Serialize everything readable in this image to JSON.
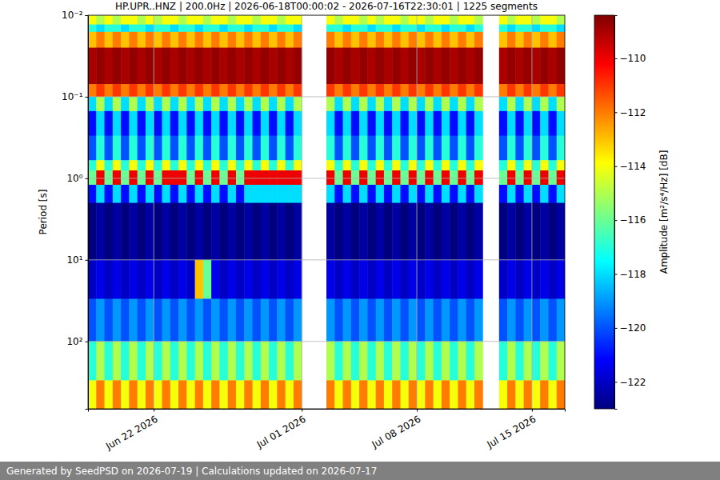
{
  "chart_data": {
    "type": "heatmap",
    "title": "HP.UPR..HNZ | 200.0Hz | 2026-06-18T00:00:02 - 2026-07-16T22:30:01 | 1225 segments",
    "y_label": "Period [s]",
    "footer": "Generated by SeedPSD on 2026-07-19 | Calculations updated on 2026-07-17",
    "log": "y",
    "grid": true,
    "xlim": [
      "2026-06-18",
      "2026-07-17"
    ],
    "xticks": [
      {
        "value": "2026-06-22",
        "label": "Jun 22 2026"
      },
      {
        "value": "2026-07-01",
        "label": "Jul 01 2026"
      },
      {
        "value": "2026-07-08",
        "label": "Jul 08 2026"
      },
      {
        "value": "2026-07-15",
        "label": "Jul 15 2026"
      }
    ],
    "ylim": [
      0.01,
      670
    ],
    "yticks": [
      {
        "value": 0.01,
        "label": "10⁻²"
      },
      {
        "value": 0.1,
        "label": "10⁻¹"
      },
      {
        "value": 1,
        "label": "10⁰"
      },
      {
        "value": 10,
        "label": "10¹"
      },
      {
        "value": 100,
        "label": "10²"
      }
    ],
    "colorbar": {
      "label": "Amplitude [m²/s⁴/Hz] [dB]",
      "lim": [
        -123,
        -108.4
      ],
      "ticks": [
        {
          "value": -110,
          "label": "−110"
        },
        {
          "value": -112,
          "label": "−112"
        },
        {
          "value": -114,
          "label": "−114"
        },
        {
          "value": -116,
          "label": "−116"
        },
        {
          "value": -118,
          "label": "−118"
        },
        {
          "value": -120,
          "label": "−120"
        },
        {
          "value": -122,
          "label": "−122"
        }
      ]
    },
    "x": [
      "2026-06-18T00:00",
      "2026-06-18T12:00",
      "2026-06-19T00:00",
      "2026-06-19T12:00",
      "2026-06-20T00:00",
      "2026-06-20T12:00",
      "2026-06-21T00:00",
      "2026-06-21T12:00",
      "2026-06-22T00:00",
      "2026-06-22T12:00",
      "2026-06-23T00:00",
      "2026-06-23T12:00",
      "2026-06-24T00:00",
      "2026-06-24T12:00",
      "2026-06-25T00:00",
      "2026-06-25T12:00",
      "2026-06-26T00:00",
      "2026-06-26T12:00",
      "2026-06-27T00:00",
      "2026-06-27T12:00",
      "2026-06-28T00:00",
      "2026-06-28T12:00",
      "2026-06-29T00:00",
      "2026-06-29T12:00",
      "2026-06-30T00:00",
      "2026-06-30T12:00",
      "2026-07-01T00:00",
      "2026-07-01T12:00",
      "2026-07-02T00:00",
      "2026-07-02T12:00",
      "2026-07-03T00:00",
      "2026-07-03T12:00",
      "2026-07-04T00:00",
      "2026-07-04T12:00",
      "2026-07-05T00:00",
      "2026-07-05T12:00",
      "2026-07-06T00:00",
      "2026-07-06T12:00",
      "2026-07-07T00:00",
      "2026-07-07T12:00",
      "2026-07-08T00:00",
      "2026-07-08T12:00",
      "2026-07-09T00:00",
      "2026-07-09T12:00",
      "2026-07-10T00:00",
      "2026-07-10T12:00",
      "2026-07-11T00:00",
      "2026-07-11T12:00",
      "2026-07-12T00:00",
      "2026-07-12T12:00",
      "2026-07-13T00:00",
      "2026-07-13T12:00",
      "2026-07-14T00:00",
      "2026-07-14T12:00",
      "2026-07-15T00:00",
      "2026-07-15T12:00",
      "2026-07-16T00:00",
      "2026-07-16T12:00",
      "2026-07-17T00:00"
    ],
    "y": [
      0.01,
      0.013,
      0.016,
      0.025,
      0.07,
      0.1,
      0.15,
      0.3,
      0.6,
      0.8,
      1.2,
      2,
      10,
      30,
      100,
      300,
      670
    ],
    "values": [
      [
        -114,
        -115,
        -114,
        -115,
        -114,
        -114,
        -115,
        -114,
        -115,
        -114,
        -114,
        -115,
        -114,
        -114,
        -115,
        -114,
        -114,
        -115,
        -114,
        -114,
        -115,
        -114,
        -114,
        -115,
        -114,
        -114,
        null,
        null,
        null,
        -114,
        -115,
        -114,
        -114,
        -115,
        -114,
        -115,
        -114,
        -114,
        -115,
        -114,
        -114,
        -115,
        -114,
        -114,
        -115,
        -114,
        -114,
        -115,
        null,
        null,
        -114,
        -115,
        -114,
        -114,
        -115,
        -114,
        -114,
        -115
      ],
      [
        -117,
        -118,
        -117,
        -117,
        -118,
        -117,
        -117,
        -118,
        -117,
        -117,
        -118,
        -117,
        -117,
        -118,
        -117,
        -117,
        -118,
        -117,
        -117,
        -118,
        -117,
        -117,
        -118,
        -117,
        -117,
        -118,
        null,
        null,
        null,
        -117,
        -117,
        -118,
        -117,
        -117,
        -118,
        -117,
        -117,
        -118,
        -117,
        -117,
        -118,
        -117,
        -117,
        -118,
        -117,
        -117,
        -118,
        -117,
        null,
        null,
        -117,
        -118,
        -117,
        -117,
        -118,
        -117,
        -117,
        -118
      ],
      [
        -113,
        -112,
        -113,
        -112,
        -113,
        -112,
        -113,
        -112,
        -113,
        -112,
        -113,
        -112,
        -113,
        -112,
        -113,
        -112,
        -113,
        -112,
        -113,
        -112,
        -113,
        -112,
        -113,
        -112,
        -113,
        -112,
        null,
        null,
        null,
        -112,
        -113,
        -112,
        -113,
        -112,
        -113,
        -112,
        -113,
        -112,
        -113,
        -112,
        -113,
        -112,
        -113,
        -112,
        -113,
        -112,
        -113,
        -112,
        null,
        null,
        -113,
        -112,
        -113,
        -112,
        -113,
        -112,
        -113,
        -112
      ],
      [
        -109,
        -108.7,
        -109,
        -108.7,
        -109,
        -108.7,
        -109,
        -108.7,
        -109,
        -108.7,
        -109,
        -108.7,
        -109,
        -108.7,
        -109,
        -108.7,
        -109,
        -108.7,
        -109,
        -108.7,
        -109,
        -108.7,
        -109,
        -108.7,
        -109,
        -108.7,
        null,
        null,
        null,
        -108.7,
        -109,
        -108.7,
        -109,
        -108.7,
        -109,
        -108.7,
        -109,
        -108.7,
        -109,
        -108.7,
        -109,
        -108.7,
        -109,
        -108.7,
        -109,
        -108.7,
        -109,
        -108.7,
        null,
        null,
        -109,
        -108.7,
        -109,
        -108.7,
        -109,
        -108.7,
        -109,
        -108.7
      ],
      [
        -112,
        -111,
        -112,
        -111,
        -112,
        -111,
        -112,
        -111,
        -112,
        -111,
        -112,
        -111,
        -112,
        -111,
        -112,
        -111,
        -112,
        -111,
        -112,
        -111,
        -112,
        -111,
        -112,
        -111,
        -112,
        -111,
        null,
        null,
        null,
        -111,
        -112,
        -111,
        -112,
        -111,
        -112,
        -111,
        -112,
        -111,
        -112,
        -111,
        -112,
        -111,
        -112,
        -111,
        -112,
        -111,
        -112,
        -111,
        null,
        null,
        -112,
        -111,
        -112,
        -111,
        -112,
        -111,
        -112,
        -111
      ],
      [
        -118,
        -115,
        -118,
        -115,
        -118,
        -115,
        -118,
        -115,
        -118,
        -115,
        -118,
        -115,
        -118,
        -115,
        -118,
        -115,
        -118,
        -115,
        -118,
        -115,
        -118,
        -115,
        -118,
        -115,
        -118,
        -115,
        null,
        null,
        null,
        -115,
        -118,
        -115,
        -118,
        -115,
        -118,
        -115,
        -118,
        -115,
        -118,
        -115,
        -118,
        -115,
        -118,
        -115,
        -118,
        -115,
        -118,
        -115,
        null,
        null,
        -118,
        -115,
        -118,
        -115,
        -118,
        -115,
        -118,
        -115
      ],
      [
        -121,
        -118,
        -121,
        -118,
        -121,
        -118,
        -121,
        -118,
        -121,
        -118,
        -121,
        -118,
        -121,
        -118,
        -121,
        -118,
        -121,
        -118,
        -121,
        -118,
        -121,
        -118,
        -121,
        -118,
        -121,
        -118,
        null,
        null,
        null,
        -118,
        -121,
        -118,
        -121,
        -118,
        -121,
        -118,
        -121,
        -118,
        -121,
        -118,
        -121,
        -118,
        -121,
        -118,
        -121,
        -118,
        -121,
        -118,
        null,
        null,
        -121,
        -118,
        -121,
        -118,
        -121,
        -118,
        -121,
        -118
      ],
      [
        -120,
        -117,
        -120,
        -117,
        -120,
        -117,
        -120,
        -117,
        -120,
        -117,
        -120,
        -117,
        -120,
        -117,
        -120,
        -117,
        -120,
        -117,
        -120,
        -117,
        -120,
        -117,
        -120,
        -117,
        -120,
        -117,
        null,
        null,
        null,
        -117,
        -120,
        -117,
        -120,
        -117,
        -120,
        -117,
        -120,
        -117,
        -120,
        -117,
        -120,
        -117,
        -120,
        -117,
        -120,
        -117,
        -120,
        -117,
        null,
        null,
        -120,
        -117,
        -120,
        -117,
        -120,
        -117,
        -120,
        -117
      ],
      [
        -117,
        -114,
        -117,
        -114,
        -117,
        -114,
        -117,
        -114,
        -117,
        -114,
        -117,
        -114,
        -117,
        -114,
        -117,
        -114,
        -117,
        -114,
        -117,
        -114,
        -117,
        -114,
        -117,
        -114,
        -117,
        -114,
        null,
        null,
        null,
        -114,
        -117,
        -114,
        -117,
        -114,
        -117,
        -114,
        -117,
        -114,
        -117,
        -114,
        -117,
        -114,
        -117,
        -114,
        -117,
        -114,
        -117,
        -114,
        null,
        null,
        -117,
        -114,
        -117,
        -114,
        -117,
        -114,
        -117,
        -114
      ],
      [
        -116,
        -110,
        -116,
        -110,
        -116,
        -110,
        -116,
        -110,
        -116,
        -110,
        -110,
        -110,
        -116,
        -110,
        -116,
        -110,
        -116,
        -110,
        -116,
        -110,
        -110,
        -110,
        -110,
        -110,
        -110,
        -110,
        null,
        null,
        null,
        -110,
        -116,
        -110,
        -116,
        -110,
        -116,
        -110,
        -116,
        -110,
        -116,
        -110,
        -116,
        -110,
        -116,
        -110,
        -116,
        -110,
        -116,
        -110,
        null,
        null,
        -116,
        -110,
        -116,
        -110,
        -116,
        -110,
        -116,
        -110
      ],
      [
        -121,
        -118,
        -121,
        -118,
        -121,
        -118,
        -121,
        -118,
        -121,
        -118,
        -121,
        -118,
        -121,
        -118,
        -121,
        -118,
        -121,
        -118,
        -121,
        -118,
        -118,
        -118,
        -118,
        -118,
        -118,
        -118,
        null,
        null,
        null,
        -118,
        -121,
        -118,
        -121,
        -118,
        -121,
        -118,
        -121,
        -118,
        -121,
        -118,
        -121,
        -118,
        -121,
        -118,
        -121,
        -118,
        -121,
        -118,
        null,
        null,
        -121,
        -118,
        -121,
        -118,
        -121,
        -118,
        -121,
        -118
      ],
      [
        -123,
        -122.5,
        -123,
        -122.5,
        -123,
        -122.5,
        -123,
        -122.5,
        -123,
        -122.5,
        -123,
        -122.5,
        -123,
        -122.5,
        -123,
        -122.5,
        -123,
        -122.5,
        -123,
        -122.5,
        -123,
        -122.5,
        -123,
        -122.5,
        -123,
        -122.5,
        null,
        null,
        null,
        -122.5,
        -123,
        -122.5,
        -123,
        -122.5,
        -123,
        -122.5,
        -123,
        -122.5,
        -123,
        -122.5,
        -123,
        -122.5,
        -123,
        -122.5,
        -123,
        -122.5,
        -123,
        -122.5,
        null,
        null,
        -123,
        -122.5,
        -123,
        -122.5,
        -123,
        -122.5,
        -123,
        -122.5
      ],
      [
        -122,
        -121.5,
        -122,
        -121.5,
        -122,
        -121.5,
        -122,
        -121.5,
        -122,
        -121.5,
        -122,
        -121.5,
        -122,
        -113,
        -116,
        -121.5,
        -122,
        -121.5,
        -122,
        -121.5,
        -122,
        -121.5,
        -122,
        -121.5,
        -122,
        -121.5,
        null,
        null,
        null,
        -121.5,
        -122,
        -121.5,
        -122,
        -121.5,
        -122,
        -121.5,
        -122,
        -121.5,
        -122,
        -121.5,
        -122,
        -121.5,
        -122,
        -121.5,
        -122,
        -121.5,
        -122,
        -121.5,
        null,
        null,
        -122,
        -121.5,
        -122,
        -121.5,
        -122,
        -121.5,
        -122,
        -121.5
      ],
      [
        -120,
        -119,
        -120,
        -119,
        -120,
        -119,
        -120,
        -119,
        -120,
        -119,
        -120,
        -119,
        -120,
        -119,
        -120,
        -119,
        -120,
        -119,
        -120,
        -119,
        -120,
        -119,
        -120,
        -119,
        -120,
        -119,
        null,
        null,
        null,
        -119,
        -120,
        -119,
        -120,
        -119,
        -120,
        -119,
        -120,
        -119,
        -120,
        -119,
        -120,
        -119,
        -120,
        -119,
        -120,
        -119,
        -120,
        -119,
        null,
        null,
        -120,
        -119,
        -120,
        -119,
        -120,
        -119,
        -120,
        -119
      ],
      [
        -117,
        -115,
        -117,
        -115,
        -117,
        -115,
        -117,
        -115,
        -117,
        -115,
        -117,
        -115,
        -117,
        -115,
        -117,
        -115,
        -117,
        -115,
        -117,
        -115,
        -117,
        -115,
        -117,
        -115,
        -117,
        -115,
        null,
        null,
        null,
        -115,
        -117,
        -115,
        -117,
        -115,
        -117,
        -115,
        -117,
        -115,
        -117,
        -115,
        -117,
        -115,
        -117,
        -115,
        -117,
        -115,
        -117,
        -115,
        null,
        null,
        -117,
        -115,
        -117,
        -115,
        -117,
        -115,
        -117,
        -115
      ],
      [
        -114,
        -112,
        -114,
        -112,
        -114,
        -112,
        -114,
        -112,
        -114,
        -112,
        -114,
        -112,
        -114,
        -112,
        -114,
        -112,
        -114,
        -112,
        -114,
        -112,
        -114,
        -112,
        -114,
        -112,
        -114,
        -112,
        null,
        null,
        null,
        -112,
        -114,
        -112,
        -114,
        -112,
        -114,
        -112,
        -114,
        -112,
        -114,
        -112,
        -114,
        -112,
        -114,
        -112,
        -114,
        -112,
        -114,
        -112,
        null,
        null,
        -114,
        -112,
        -114,
        -112,
        -114,
        -112,
        -114,
        -112
      ]
    ]
  }
}
